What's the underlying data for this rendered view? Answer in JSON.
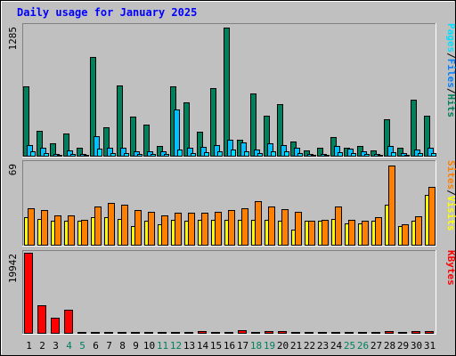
{
  "title": "Daily usage for January 2025",
  "colors": {
    "hits": "#00805c",
    "files": "#00c0ff",
    "pages": "#00e0ff",
    "visits": "#ffff00",
    "sites": "#ff8000",
    "kbytes": "#ff0000",
    "weekday_label": "#000000",
    "weekend_label": "#00805c",
    "title": "#0000ff"
  },
  "chart_data": [
    {
      "type": "bar",
      "panel": "hits-files-pages",
      "y_tick_label": "1285",
      "ylim": [
        0,
        1285
      ],
      "legend": [
        {
          "text": "Pages",
          "color": "#00e0ff"
        },
        {
          "text": "/",
          "color": "#000000"
        },
        {
          "text": "Files",
          "color": "#0080ff"
        },
        {
          "text": "/",
          "color": "#000000"
        },
        {
          "text": "Hits",
          "color": "#00805c"
        }
      ],
      "categories": [
        "1",
        "2",
        "3",
        "4",
        "5",
        "6",
        "7",
        "8",
        "9",
        "10",
        "11",
        "12",
        "13",
        "14",
        "15",
        "16",
        "17",
        "18",
        "19",
        "20",
        "21",
        "22",
        "23",
        "24",
        "25",
        "26",
        "27",
        "28",
        "29",
        "30",
        "31"
      ],
      "weekend_days": [
        "4",
        "5",
        "11",
        "12",
        "18",
        "19",
        "25",
        "26"
      ],
      "series": [
        {
          "name": "Hits",
          "values": [
            690,
            250,
            120,
            220,
            80,
            975,
            280,
            695,
            390,
            310,
            100,
            690,
            530,
            235,
            670,
            1270,
            160,
            615,
            400,
            510,
            140,
            50,
            75,
            185,
            80,
            100,
            50,
            360,
            80,
            555,
            395
          ]
        },
        {
          "name": "Files",
          "values": [
            110,
            75,
            20,
            50,
            20,
            190,
            80,
            80,
            40,
            40,
            40,
            460,
            75,
            90,
            110,
            155,
            130,
            60,
            120,
            110,
            80,
            20,
            15,
            95,
            70,
            40,
            20,
            100,
            30,
            60,
            75
          ]
        },
        {
          "name": "Pages",
          "values": [
            40,
            30,
            10,
            20,
            10,
            70,
            30,
            30,
            15,
            15,
            15,
            60,
            30,
            35,
            45,
            60,
            45,
            25,
            45,
            40,
            30,
            10,
            5,
            35,
            25,
            15,
            10,
            35,
            10,
            25,
            30
          ]
        }
      ]
    },
    {
      "type": "bar",
      "panel": "visits-sites",
      "y_tick_label": "69",
      "ylim": [
        0,
        69
      ],
      "legend": [
        {
          "text": "Sites",
          "color": "#ff8000"
        },
        {
          "text": "/",
          "color": "#000000"
        },
        {
          "text": "Visits",
          "color": "#ffff00"
        }
      ],
      "categories": [
        "1",
        "2",
        "3",
        "4",
        "5",
        "6",
        "7",
        "8",
        "9",
        "10",
        "11",
        "12",
        "13",
        "14",
        "15",
        "16",
        "17",
        "18",
        "19",
        "20",
        "21",
        "22",
        "23",
        "24",
        "25",
        "26",
        "27",
        "28",
        "29",
        "30",
        "31"
      ],
      "series": [
        {
          "name": "Visits",
          "values": [
            23,
            22,
            20,
            20,
            20,
            23,
            23,
            22,
            16,
            20,
            17,
            21,
            20,
            21,
            21,
            21,
            21,
            21,
            21,
            20,
            13,
            20,
            20,
            22,
            18,
            18,
            20,
            34,
            16,
            20,
            42
          ]
        },
        {
          "name": "Sites",
          "values": [
            31,
            29,
            25,
            25,
            21,
            32,
            35,
            34,
            29,
            28,
            25,
            27,
            27,
            27,
            28,
            29,
            31,
            37,
            32,
            30,
            28,
            20,
            21,
            32,
            21,
            20,
            23,
            67,
            17,
            24,
            49
          ]
        }
      ]
    },
    {
      "type": "bar",
      "panel": "kbytes",
      "y_tick_label": "19942",
      "ylim": [
        0,
        19942
      ],
      "legend": [
        {
          "text": "KBytes",
          "color": "#ff0000"
        }
      ],
      "categories": [
        "1",
        "2",
        "3",
        "4",
        "5",
        "6",
        "7",
        "8",
        "9",
        "10",
        "11",
        "12",
        "13",
        "14",
        "15",
        "16",
        "17",
        "18",
        "19",
        "20",
        "21",
        "22",
        "23",
        "24",
        "25",
        "26",
        "27",
        "28",
        "29",
        "30",
        "31"
      ],
      "series": [
        {
          "name": "KBytes",
          "values": [
            19942,
            6800,
            3700,
            5800,
            150,
            150,
            150,
            150,
            150,
            150,
            150,
            150,
            150,
            500,
            150,
            150,
            600,
            150,
            450,
            450,
            150,
            150,
            150,
            150,
            150,
            150,
            150,
            550,
            150,
            450,
            450
          ]
        }
      ]
    }
  ]
}
